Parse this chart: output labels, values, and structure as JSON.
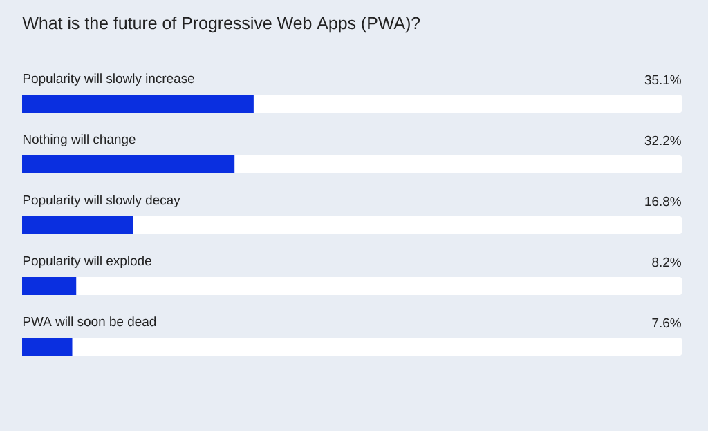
{
  "chart_data": {
    "type": "bar",
    "orientation": "horizontal",
    "title": "What is the future of Progressive Web Apps (PWA)?",
    "categories": [
      "Popularity will slowly increase",
      "Nothing will change",
      "Popularity will slowly decay",
      "Popularity will explode",
      "PWA will soon be dead"
    ],
    "values": [
      35.1,
      32.2,
      16.8,
      8.2,
      7.6
    ],
    "value_labels": [
      "35.1%",
      "32.2%",
      "16.8%",
      "8.2%",
      "7.6%"
    ],
    "color": "#0a2fe0",
    "xlim": [
      0,
      100
    ]
  }
}
